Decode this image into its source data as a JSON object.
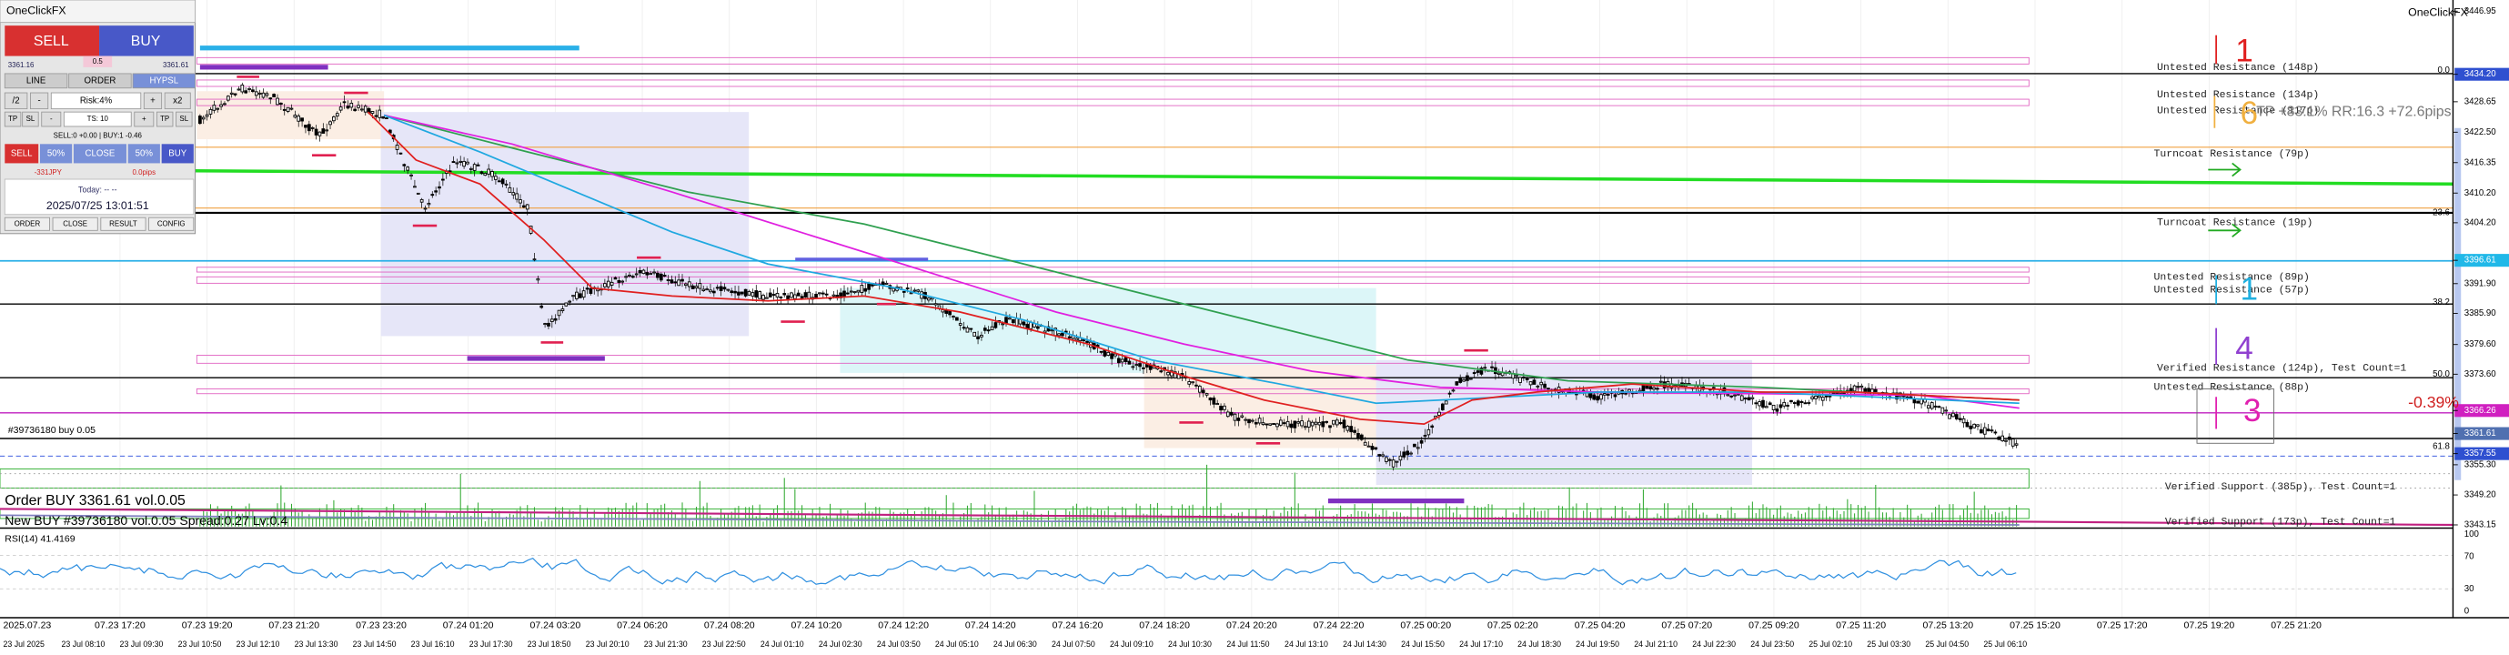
{
  "panel": {
    "title": "OneClickFX",
    "sell": "SELL",
    "buy": "BUY",
    "bid": "3361.16",
    "lot": "0.5",
    "ask": "3361.61",
    "tabs": [
      "LINE",
      "ORDER",
      "HYPSL"
    ],
    "row1": [
      "/2",
      "-",
      "Risk:4%",
      "+",
      "x2"
    ],
    "row2": [
      "TP",
      "SL",
      "-",
      "TS: 10",
      "+",
      "TP",
      "SL"
    ],
    "positions": "SELL:0 +0.00 | BUY:1 -0.46",
    "row3": [
      "SELL",
      "50%",
      "CLOSE",
      "50%",
      "BUY"
    ],
    "pnl": "-331JPY",
    "pips": "0.0pips",
    "today": "Today: -- --",
    "clock": "2025/07/25 13:01:51",
    "footer": [
      "ORDER",
      "CLOSE",
      "RESULT",
      "CONFIG"
    ]
  },
  "brand": "OneClickFX",
  "zones": [
    "Untested Resistance (148p)",
    "Untested Resistance (134p)",
    "Untested Resistance (117p)",
    "Turncoat Resistance (79p)",
    "Turncoat Resistance (19p)",
    "Untested Resistance (89p)",
    "Untested Resistance (57p)",
    "Verified Resistance (124p), Test Count=1",
    "Untested Resistance (88p)",
    "Verified Support (385p), Test Count=1",
    "Verified Support (173p), Test Count=1"
  ],
  "annotations": {
    "tp": "TP +83.1% RR:16.3 +72.6pips",
    "change": "-0.39%",
    "marks": [
      "1",
      "6",
      "1",
      "4",
      "3"
    ]
  },
  "fib": [
    "0.0",
    "23.6",
    "38.2",
    "50.0",
    "61.8"
  ],
  "price_axis": [
    "3446.95",
    "3434.20",
    "3428.65",
    "3422.50",
    "3416.35",
    "3410.20",
    "3404.20",
    "3396.61",
    "3391.90",
    "3385.90",
    "3379.60",
    "3373.60",
    "3366.26",
    "3361.61",
    "3357.55",
    "3355.30",
    "3349.20",
    "3343.15"
  ],
  "orders": [
    "#39736180 buy 0.05",
    "Order BUY 3361.61 vol.0.05",
    "New BUY #39736180 vol.0.05 Spread:0.27 Lv:0.4"
  ],
  "rsi": {
    "label": "RSI(14) 41.4169",
    "ticks": [
      "100",
      "70",
      "30",
      "0"
    ]
  },
  "time_axis": {
    "top": [
      "2025.07.23",
      "07.23 17:20",
      "07.23 19:20",
      "07.23 21:20",
      "07.23 23:20",
      "07.24 01:20",
      "07.24 03:20",
      "07.24 06:20",
      "07.24 08:20",
      "07.24 10:20",
      "07.24 12:20",
      "07.24 14:20",
      "07.24 16:20",
      "07.24 18:20",
      "07.24 20:20",
      "07.24 22:20",
      "07.25 00:20",
      "07.25 02:20",
      "07.25 04:20",
      "07.25 07:20",
      "07.25 09:20",
      "07.25 11:20",
      "07.25 13:20",
      "07.25 15:20",
      "07.25 17:20",
      "07.25 19:20",
      "07.25 21:20"
    ],
    "bottom": [
      "23 Jul 2025",
      "23 Jul 08:10",
      "23 Jul 09:30",
      "23 Jul 10:50",
      "23 Jul 12:10",
      "23 Jul 13:30",
      "23 Jul 14:50",
      "23 Jul 16:10",
      "23 Jul 17:30",
      "23 Jul 18:50",
      "23 Jul 20:10",
      "23 Jul 21:30",
      "23 Jul 22:50",
      "24 Jul 01:10",
      "24 Jul 02:30",
      "24 Jul 03:50",
      "24 Jul 05:10",
      "24 Jul 06:30",
      "24 Jul 07:50",
      "24 Jul 09:10",
      "24 Jul 10:30",
      "24 Jul 11:50",
      "24 Jul 13:10",
      "24 Jul 14:30",
      "24 Jul 15:50",
      "24 Jul 17:10",
      "24 Jul 18:30",
      "24 Jul 19:50",
      "24 Jul 21:10",
      "24 Jul 22:30",
      "24 Jul 23:50",
      "25 Jul 02:10",
      "25 Jul 03:30",
      "25 Jul 04:50",
      "25 Jul 06:10"
    ]
  }
}
